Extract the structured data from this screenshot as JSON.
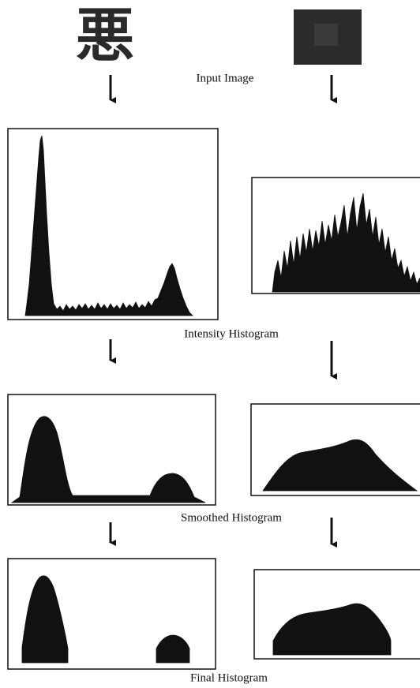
{
  "images": [
    {
      "glyph": "悪"
    }
  ],
  "labels": {
    "input": "Input Image",
    "intensity": "Intensity Histogram",
    "smoothed": "Smoothed Histogram",
    "final": "Final Histogram"
  }
}
